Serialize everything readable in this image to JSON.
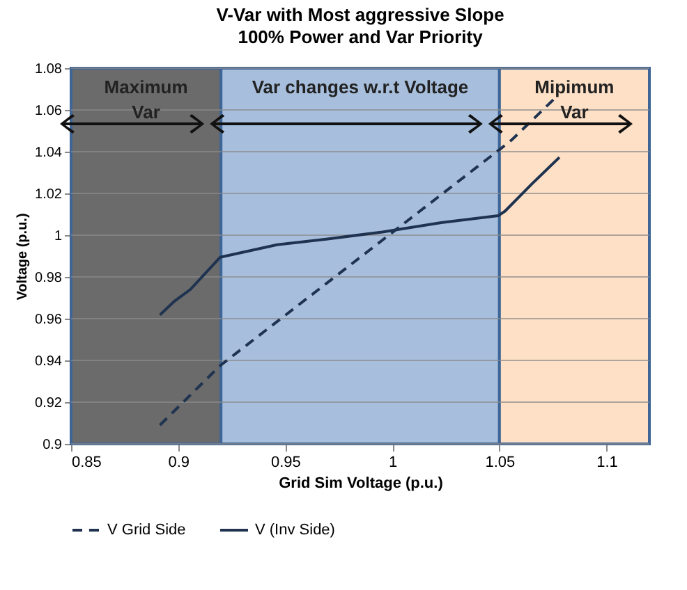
{
  "chart_data": {
    "type": "line",
    "title": "V-Var with Most aggressive Slope",
    "subtitle": "100% Power and Var Priority",
    "xlabel": "Grid Sim Voltage (p.u.)",
    "ylabel": "Voltage (p.u.)",
    "xlim": [
      0.85,
      1.12
    ],
    "xticks": [
      0.85,
      0.9,
      0.95,
      1,
      1.05,
      1.1
    ],
    "ylim": [
      0.9,
      1.08
    ],
    "yticks": [
      0.9,
      0.92,
      0.94,
      0.96,
      0.98,
      1,
      1.02,
      1.04,
      1.06,
      1.08
    ],
    "grid": "y",
    "legend": "bottom",
    "marker": "none",
    "series": [
      {
        "name": "V Grid Side",
        "color": "#1f3350",
        "line_style": "dashed",
        "x": [
          0.8915,
          0.9196,
          1.0504,
          1.0558,
          1.077
        ],
        "values": [
          0.909,
          0.9375,
          1.0413,
          1.0457,
          1.0667
        ]
      },
      {
        "name": "V (Inv Side)",
        "color": "#1f3350",
        "line_style": "solid",
        "x": [
          0.8915,
          0.8983,
          0.9057,
          0.9196,
          0.9462,
          0.9698,
          0.9953,
          1.0228,
          1.0494,
          1.0526,
          1.0653,
          1.078
        ],
        "values": [
          0.9618,
          0.9684,
          0.974,
          0.9894,
          0.9954,
          0.9982,
          1.0015,
          1.006,
          1.0093,
          1.0115,
          1.0247,
          1.0373
        ]
      }
    ],
    "bands": [
      {
        "axis": "x",
        "from": 0.85,
        "to": 0.92,
        "label": "Maximum\nVar",
        "color": "#6b6b6b"
      },
      {
        "axis": "x",
        "from": 0.92,
        "to": 1.05,
        "label": "Var changes w.r.t Voltage",
        "color": "#a7bfdd"
      },
      {
        "axis": "x",
        "from": 1.05,
        "to": 1.12,
        "label": "Mipimum\nVar",
        "color": "#fde0c5"
      }
    ]
  }
}
